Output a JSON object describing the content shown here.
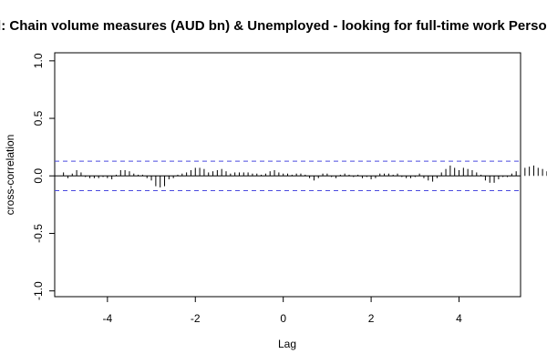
{
  "chart_data": {
    "type": "bar",
    "title": "od: Chain volume measures (AUD bn) & Unemployed - looking for full-time work Persons",
    "xlabel": "Lag",
    "ylabel": "cross-correlation",
    "xlim": [
      -5.2,
      5.4
    ],
    "ylim": [
      -1.05,
      1.07
    ],
    "x_ticks": [
      -4,
      -2,
      0,
      2,
      4
    ],
    "x_tick_labels": [
      "-4",
      "-2",
      "0",
      "2",
      "4"
    ],
    "y_ticks": [
      -1.0,
      -0.5,
      0.0,
      0.5,
      1.0
    ],
    "y_tick_labels": [
      "-1.0",
      "-0.5",
      "0.0",
      "0.5",
      "1.0"
    ],
    "confidence_limit": 0.128,
    "lag_step": 0.1,
    "lag_start": -5.0,
    "values": [
      0.03,
      -0.02,
      0.02,
      0.05,
      0.03,
      -0.01,
      -0.02,
      -0.02,
      -0.02,
      -0.01,
      -0.02,
      -0.03,
      0.01,
      0.05,
      0.05,
      0.04,
      0.02,
      0.01,
      0.01,
      -0.02,
      -0.04,
      -0.09,
      -0.1,
      -0.09,
      -0.03,
      -0.02,
      0.01,
      0.02,
      0.03,
      0.05,
      0.07,
      0.07,
      0.06,
      0.03,
      0.04,
      0.05,
      0.06,
      0.04,
      0.02,
      0.03,
      0.03,
      0.03,
      0.03,
      0.02,
      0.02,
      0.01,
      0.02,
      0.04,
      0.05,
      0.03,
      0.02,
      0.02,
      0.01,
      0.02,
      0.02,
      0.01,
      -0.02,
      -0.04,
      -0.02,
      0.02,
      0.02,
      -0.01,
      -0.02,
      0.01,
      0.02,
      0.01,
      -0.01,
      0.01,
      -0.02,
      -0.01,
      -0.03,
      -0.02,
      0.02,
      0.02,
      0.02,
      0.01,
      0.02,
      -0.01,
      -0.02,
      -0.02,
      -0.01,
      0.02,
      -0.02,
      -0.04,
      -0.05,
      -0.02,
      0.03,
      0.06,
      0.09,
      0.07,
      0.05,
      0.07,
      0.06,
      0.05,
      0.03,
      0.01,
      -0.04,
      -0.06,
      -0.06,
      -0.03,
      -0.01,
      -0.01,
      0.02,
      0.04,
      0.05,
      0.07,
      0.08,
      0.09,
      0.07,
      0.06,
      0.04,
      0.08,
      0.06,
      0.04,
      0.02,
      0.0,
      -0.02,
      -0.03,
      -0.04,
      -0.04,
      -0.05,
      -0.07
    ]
  }
}
